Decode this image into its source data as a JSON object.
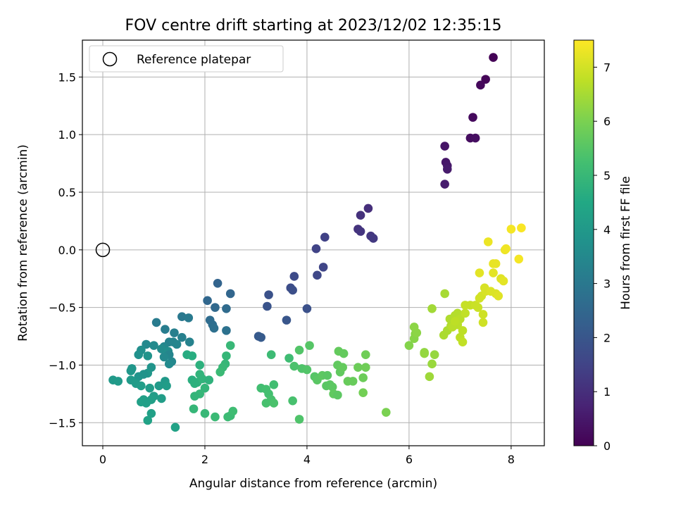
{
  "chart_data": {
    "type": "scatter",
    "title": "FOV centre drift starting at 2023/12/02 12:35:15",
    "xlabel": "Angular distance from reference (arcmin)",
    "ylabel": "Rotation from reference (arcmin)",
    "colorbar_label": "Hours from first FF file",
    "xlim": [
      -0.4,
      8.65
    ],
    "ylim": [
      -1.7,
      1.82
    ],
    "x_ticks": [
      0,
      2,
      4,
      6,
      8
    ],
    "y_ticks": [
      -1.5,
      -1.0,
      -0.5,
      0.0,
      0.5,
      1.0,
      1.5
    ],
    "x_tick_labels": [
      "0",
      "2",
      "4",
      "6",
      "8"
    ],
    "y_tick_labels": [
      "−1.5",
      "−1.0",
      "−0.5",
      "0.0",
      "0.5",
      "1.0",
      "1.5"
    ],
    "colorbar_range": [
      0,
      7.5
    ],
    "colorbar_ticks": [
      0,
      1,
      2,
      3,
      4,
      5,
      6,
      7
    ],
    "colorbar_tick_labels": [
      "0",
      "1",
      "2",
      "3",
      "4",
      "5",
      "6",
      "7"
    ],
    "colormap": "viridis",
    "grid": true,
    "legend": {
      "entries": [
        "Reference platepar"
      ],
      "position": "top-left"
    },
    "reference_point": {
      "name": "Reference platepar",
      "x": 0.0,
      "y": 0.0
    },
    "points": [
      {
        "x": 7.65,
        "y": 1.67,
        "c": 0.05
      },
      {
        "x": 7.5,
        "y": 1.48,
        "c": 0.1
      },
      {
        "x": 7.4,
        "y": 1.43,
        "c": 0.15
      },
      {
        "x": 7.25,
        "y": 1.15,
        "c": 0.2
      },
      {
        "x": 7.2,
        "y": 0.97,
        "c": 0.25
      },
      {
        "x": 7.3,
        "y": 0.97,
        "c": 0.3
      },
      {
        "x": 6.7,
        "y": 0.9,
        "c": 0.4
      },
      {
        "x": 6.72,
        "y": 0.76,
        "c": 0.45
      },
      {
        "x": 6.75,
        "y": 0.73,
        "c": 0.5
      },
      {
        "x": 6.75,
        "y": 0.7,
        "c": 0.55
      },
      {
        "x": 6.7,
        "y": 0.57,
        "c": 0.6
      },
      {
        "x": 5.2,
        "y": 0.36,
        "c": 1.0
      },
      {
        "x": 5.05,
        "y": 0.3,
        "c": 1.05
      },
      {
        "x": 5.0,
        "y": 0.18,
        "c": 1.1
      },
      {
        "x": 5.05,
        "y": 0.16,
        "c": 1.15
      },
      {
        "x": 5.25,
        "y": 0.12,
        "c": 1.2
      },
      {
        "x": 5.3,
        "y": 0.1,
        "c": 1.25
      },
      {
        "x": 4.35,
        "y": 0.11,
        "c": 1.45
      },
      {
        "x": 4.18,
        "y": 0.01,
        "c": 1.5
      },
      {
        "x": 4.32,
        "y": -0.15,
        "c": 1.55
      },
      {
        "x": 4.2,
        "y": -0.22,
        "c": 1.6
      },
      {
        "x": 3.75,
        "y": -0.23,
        "c": 1.7
      },
      {
        "x": 3.68,
        "y": -0.33,
        "c": 1.75
      },
      {
        "x": 3.72,
        "y": -0.35,
        "c": 1.8
      },
      {
        "x": 3.25,
        "y": -0.39,
        "c": 1.9
      },
      {
        "x": 3.22,
        "y": -0.49,
        "c": 1.95
      },
      {
        "x": 4.0,
        "y": -0.51,
        "c": 1.85
      },
      {
        "x": 3.6,
        "y": -0.61,
        "c": 2.0
      },
      {
        "x": 3.05,
        "y": -0.75,
        "c": 2.1
      },
      {
        "x": 3.1,
        "y": -0.76,
        "c": 2.15
      },
      {
        "x": 2.25,
        "y": -0.29,
        "c": 2.4
      },
      {
        "x": 2.5,
        "y": -0.38,
        "c": 2.45
      },
      {
        "x": 2.05,
        "y": -0.44,
        "c": 2.5
      },
      {
        "x": 2.2,
        "y": -0.5,
        "c": 2.55
      },
      {
        "x": 2.42,
        "y": -0.51,
        "c": 2.6
      },
      {
        "x": 2.1,
        "y": -0.61,
        "c": 2.65
      },
      {
        "x": 2.15,
        "y": -0.65,
        "c": 2.7
      },
      {
        "x": 2.18,
        "y": -0.68,
        "c": 2.75
      },
      {
        "x": 2.42,
        "y": -0.7,
        "c": 2.8
      },
      {
        "x": 1.55,
        "y": -0.58,
        "c": 3.0
      },
      {
        "x": 1.68,
        "y": -0.59,
        "c": 3.05
      },
      {
        "x": 1.05,
        "y": -0.63,
        "c": 3.1
      },
      {
        "x": 1.22,
        "y": -0.69,
        "c": 3.15
      },
      {
        "x": 1.4,
        "y": -0.72,
        "c": 3.2
      },
      {
        "x": 1.55,
        "y": -0.76,
        "c": 3.25
      },
      {
        "x": 1.3,
        "y": -0.8,
        "c": 3.3
      },
      {
        "x": 1.38,
        "y": -0.8,
        "c": 3.35
      },
      {
        "x": 1.7,
        "y": -0.8,
        "c": 3.3
      },
      {
        "x": 1.45,
        "y": -0.82,
        "c": 3.4
      },
      {
        "x": 1.2,
        "y": -0.84,
        "c": 3.45
      },
      {
        "x": 0.85,
        "y": -0.82,
        "c": 3.5
      },
      {
        "x": 1.0,
        "y": -0.83,
        "c": 3.55
      },
      {
        "x": 1.15,
        "y": -0.86,
        "c": 3.6
      },
      {
        "x": 1.28,
        "y": -0.88,
        "c": 3.65
      },
      {
        "x": 0.75,
        "y": -0.87,
        "c": 3.7
      },
      {
        "x": 1.3,
        "y": -0.91,
        "c": 3.4
      },
      {
        "x": 0.7,
        "y": -0.91,
        "c": 3.75
      },
      {
        "x": 0.88,
        "y": -0.92,
        "c": 3.8
      },
      {
        "x": 1.2,
        "y": -0.93,
        "c": 3.5
      },
      {
        "x": 1.35,
        "y": -0.97,
        "c": 3.45
      },
      {
        "x": 1.3,
        "y": -0.99,
        "c": 3.55
      },
      {
        "x": 0.95,
        "y": -1.02,
        "c": 3.85
      },
      {
        "x": 0.57,
        "y": -1.03,
        "c": 3.9
      },
      {
        "x": 0.55,
        "y": -1.05,
        "c": 3.95
      },
      {
        "x": 0.88,
        "y": -1.07,
        "c": 3.9
      },
      {
        "x": 0.7,
        "y": -1.1,
        "c": 3.85
      },
      {
        "x": 0.8,
        "y": -1.08,
        "c": 3.8
      },
      {
        "x": 0.2,
        "y": -1.13,
        "c": 4.0
      },
      {
        "x": 0.3,
        "y": -1.14,
        "c": 4.05
      },
      {
        "x": 0.55,
        "y": -1.13,
        "c": 4.05
      },
      {
        "x": 0.65,
        "y": -1.16,
        "c": 4.1
      },
      {
        "x": 1.22,
        "y": -1.14,
        "c": 4.0
      },
      {
        "x": 1.1,
        "y": -1.18,
        "c": 4.05
      },
      {
        "x": 1.25,
        "y": -1.18,
        "c": 4.1
      },
      {
        "x": 0.75,
        "y": -1.18,
        "c": 4.15
      },
      {
        "x": 0.92,
        "y": -1.2,
        "c": 4.1
      },
      {
        "x": 1.0,
        "y": -1.27,
        "c": 4.15
      },
      {
        "x": 0.95,
        "y": -1.3,
        "c": 4.2
      },
      {
        "x": 1.15,
        "y": -1.29,
        "c": 4.15
      },
      {
        "x": 0.8,
        "y": -1.3,
        "c": 4.2
      },
      {
        "x": 0.75,
        "y": -1.32,
        "c": 4.25
      },
      {
        "x": 0.85,
        "y": -1.33,
        "c": 4.2
      },
      {
        "x": 0.95,
        "y": -1.42,
        "c": 4.25
      },
      {
        "x": 0.88,
        "y": -1.48,
        "c": 4.3
      },
      {
        "x": 1.42,
        "y": -1.54,
        "c": 4.3
      },
      {
        "x": 1.65,
        "y": -0.91,
        "c": 4.6
      },
      {
        "x": 1.75,
        "y": -0.92,
        "c": 4.65
      },
      {
        "x": 1.75,
        "y": -1.13,
        "c": 4.7
      },
      {
        "x": 1.9,
        "y": -1.0,
        "c": 4.75
      },
      {
        "x": 1.85,
        "y": -1.15,
        "c": 4.8
      },
      {
        "x": 1.8,
        "y": -1.16,
        "c": 4.75
      },
      {
        "x": 1.95,
        "y": -1.12,
        "c": 4.85
      },
      {
        "x": 2.08,
        "y": -1.13,
        "c": 4.8
      },
      {
        "x": 1.9,
        "y": -1.08,
        "c": 4.85
      },
      {
        "x": 2.0,
        "y": -1.2,
        "c": 4.9
      },
      {
        "x": 1.9,
        "y": -1.25,
        "c": 4.95
      },
      {
        "x": 1.8,
        "y": -1.27,
        "c": 4.9
      },
      {
        "x": 1.78,
        "y": -1.38,
        "c": 4.95
      },
      {
        "x": 2.0,
        "y": -1.42,
        "c": 5.0
      },
      {
        "x": 2.2,
        "y": -1.45,
        "c": 5.05
      },
      {
        "x": 2.45,
        "y": -1.45,
        "c": 5.1
      },
      {
        "x": 2.5,
        "y": -1.44,
        "c": 5.1
      },
      {
        "x": 2.55,
        "y": -1.4,
        "c": 5.15
      },
      {
        "x": 2.5,
        "y": -0.83,
        "c": 5.0
      },
      {
        "x": 2.42,
        "y": -0.92,
        "c": 4.95
      },
      {
        "x": 2.4,
        "y": -0.99,
        "c": 4.95
      },
      {
        "x": 2.35,
        "y": -1.02,
        "c": 5.0
      },
      {
        "x": 2.3,
        "y": -1.06,
        "c": 5.05
      },
      {
        "x": 3.3,
        "y": -0.91,
        "c": 5.1
      },
      {
        "x": 3.65,
        "y": -0.94,
        "c": 5.15
      },
      {
        "x": 3.35,
        "y": -1.17,
        "c": 5.2
      },
      {
        "x": 3.1,
        "y": -1.2,
        "c": 5.2
      },
      {
        "x": 3.2,
        "y": -1.21,
        "c": 5.25
      },
      {
        "x": 3.25,
        "y": -1.25,
        "c": 5.25
      },
      {
        "x": 3.3,
        "y": -1.3,
        "c": 5.3
      },
      {
        "x": 3.2,
        "y": -1.33,
        "c": 5.3
      },
      {
        "x": 3.35,
        "y": -1.33,
        "c": 5.35
      },
      {
        "x": 3.72,
        "y": -1.31,
        "c": 5.3
      },
      {
        "x": 3.85,
        "y": -1.47,
        "c": 5.4
      },
      {
        "x": 3.9,
        "y": -1.03,
        "c": 5.4
      },
      {
        "x": 3.75,
        "y": -1.01,
        "c": 5.35
      },
      {
        "x": 3.85,
        "y": -0.87,
        "c": 5.45
      },
      {
        "x": 4.05,
        "y": -0.83,
        "c": 5.5
      },
      {
        "x": 4.0,
        "y": -1.04,
        "c": 5.45
      },
      {
        "x": 4.15,
        "y": -1.1,
        "c": 5.5
      },
      {
        "x": 4.2,
        "y": -1.13,
        "c": 5.55
      },
      {
        "x": 4.3,
        "y": -1.09,
        "c": 5.6
      },
      {
        "x": 4.4,
        "y": -1.09,
        "c": 5.55
      },
      {
        "x": 4.45,
        "y": -1.17,
        "c": 5.6
      },
      {
        "x": 4.38,
        "y": -1.18,
        "c": 5.55
      },
      {
        "x": 4.5,
        "y": -1.19,
        "c": 5.6
      },
      {
        "x": 4.52,
        "y": -1.25,
        "c": 5.65
      },
      {
        "x": 4.6,
        "y": -1.26,
        "c": 5.6
      },
      {
        "x": 4.6,
        "y": -1.0,
        "c": 5.65
      },
      {
        "x": 4.62,
        "y": -0.88,
        "c": 5.7
      },
      {
        "x": 4.72,
        "y": -0.9,
        "c": 5.7
      },
      {
        "x": 4.65,
        "y": -1.06,
        "c": 5.65
      },
      {
        "x": 4.7,
        "y": -1.02,
        "c": 5.7
      },
      {
        "x": 4.8,
        "y": -1.14,
        "c": 5.75
      },
      {
        "x": 4.9,
        "y": -1.14,
        "c": 5.75
      },
      {
        "x": 5.0,
        "y": -1.02,
        "c": 5.8
      },
      {
        "x": 5.15,
        "y": -0.91,
        "c": 5.85
      },
      {
        "x": 5.15,
        "y": -1.02,
        "c": 5.85
      },
      {
        "x": 5.1,
        "y": -1.11,
        "c": 5.8
      },
      {
        "x": 5.1,
        "y": -1.24,
        "c": 5.9
      },
      {
        "x": 5.55,
        "y": -1.41,
        "c": 6.0
      },
      {
        "x": 6.0,
        "y": -0.83,
        "c": 6.1
      },
      {
        "x": 6.1,
        "y": -0.77,
        "c": 6.15
      },
      {
        "x": 6.12,
        "y": -0.73,
        "c": 6.15
      },
      {
        "x": 6.1,
        "y": -0.67,
        "c": 6.2
      },
      {
        "x": 6.15,
        "y": -0.72,
        "c": 6.2
      },
      {
        "x": 6.3,
        "y": -0.89,
        "c": 6.25
      },
      {
        "x": 6.3,
        "y": -0.9,
        "c": 6.3
      },
      {
        "x": 6.5,
        "y": -0.91,
        "c": 6.3
      },
      {
        "x": 6.45,
        "y": -0.99,
        "c": 6.35
      },
      {
        "x": 6.4,
        "y": -1.1,
        "c": 6.4
      },
      {
        "x": 6.45,
        "y": -0.51,
        "c": 6.45
      },
      {
        "x": 6.7,
        "y": -0.38,
        "c": 6.5
      },
      {
        "x": 6.68,
        "y": -0.74,
        "c": 6.55
      },
      {
        "x": 6.75,
        "y": -0.7,
        "c": 6.55
      },
      {
        "x": 6.82,
        "y": -0.66,
        "c": 6.6
      },
      {
        "x": 6.8,
        "y": -0.6,
        "c": 6.6
      },
      {
        "x": 6.9,
        "y": -0.57,
        "c": 6.65
      },
      {
        "x": 6.95,
        "y": -0.55,
        "c": 6.65
      },
      {
        "x": 7.0,
        "y": -0.6,
        "c": 6.7
      },
      {
        "x": 6.95,
        "y": -0.65,
        "c": 6.7
      },
      {
        "x": 7.05,
        "y": -0.7,
        "c": 6.75
      },
      {
        "x": 7.0,
        "y": -0.76,
        "c": 6.75
      },
      {
        "x": 7.05,
        "y": -0.8,
        "c": 6.8
      },
      {
        "x": 6.85,
        "y": -0.67,
        "c": 6.7
      },
      {
        "x": 6.9,
        "y": -0.62,
        "c": 6.75
      },
      {
        "x": 7.1,
        "y": -0.55,
        "c": 6.8
      },
      {
        "x": 7.1,
        "y": -0.48,
        "c": 6.85
      },
      {
        "x": 7.2,
        "y": -0.48,
        "c": 6.85
      },
      {
        "x": 7.3,
        "y": -0.48,
        "c": 6.9
      },
      {
        "x": 7.35,
        "y": -0.5,
        "c": 6.9
      },
      {
        "x": 7.45,
        "y": -0.56,
        "c": 6.95
      },
      {
        "x": 7.45,
        "y": -0.63,
        "c": 6.95
      },
      {
        "x": 7.38,
        "y": -0.42,
        "c": 7.0
      },
      {
        "x": 7.42,
        "y": -0.4,
        "c": 7.0
      },
      {
        "x": 7.5,
        "y": -0.36,
        "c": 7.05
      },
      {
        "x": 7.48,
        "y": -0.33,
        "c": 7.05
      },
      {
        "x": 7.6,
        "y": -0.36,
        "c": 7.1
      },
      {
        "x": 7.7,
        "y": -0.38,
        "c": 7.1
      },
      {
        "x": 7.75,
        "y": -0.4,
        "c": 7.15
      },
      {
        "x": 7.8,
        "y": -0.25,
        "c": 7.15
      },
      {
        "x": 7.85,
        "y": -0.27,
        "c": 7.2
      },
      {
        "x": 7.65,
        "y": -0.2,
        "c": 7.2
      },
      {
        "x": 7.38,
        "y": -0.2,
        "c": 7.2
      },
      {
        "x": 7.65,
        "y": -0.12,
        "c": 7.25
      },
      {
        "x": 7.7,
        "y": -0.12,
        "c": 7.25
      },
      {
        "x": 7.55,
        "y": 0.07,
        "c": 7.3
      },
      {
        "x": 7.88,
        "y": 0.0,
        "c": 7.3
      },
      {
        "x": 7.9,
        "y": 0.01,
        "c": 7.35
      },
      {
        "x": 8.0,
        "y": 0.18,
        "c": 7.4
      },
      {
        "x": 8.15,
        "y": -0.08,
        "c": 7.4
      },
      {
        "x": 8.2,
        "y": 0.19,
        "c": 7.45
      }
    ]
  }
}
